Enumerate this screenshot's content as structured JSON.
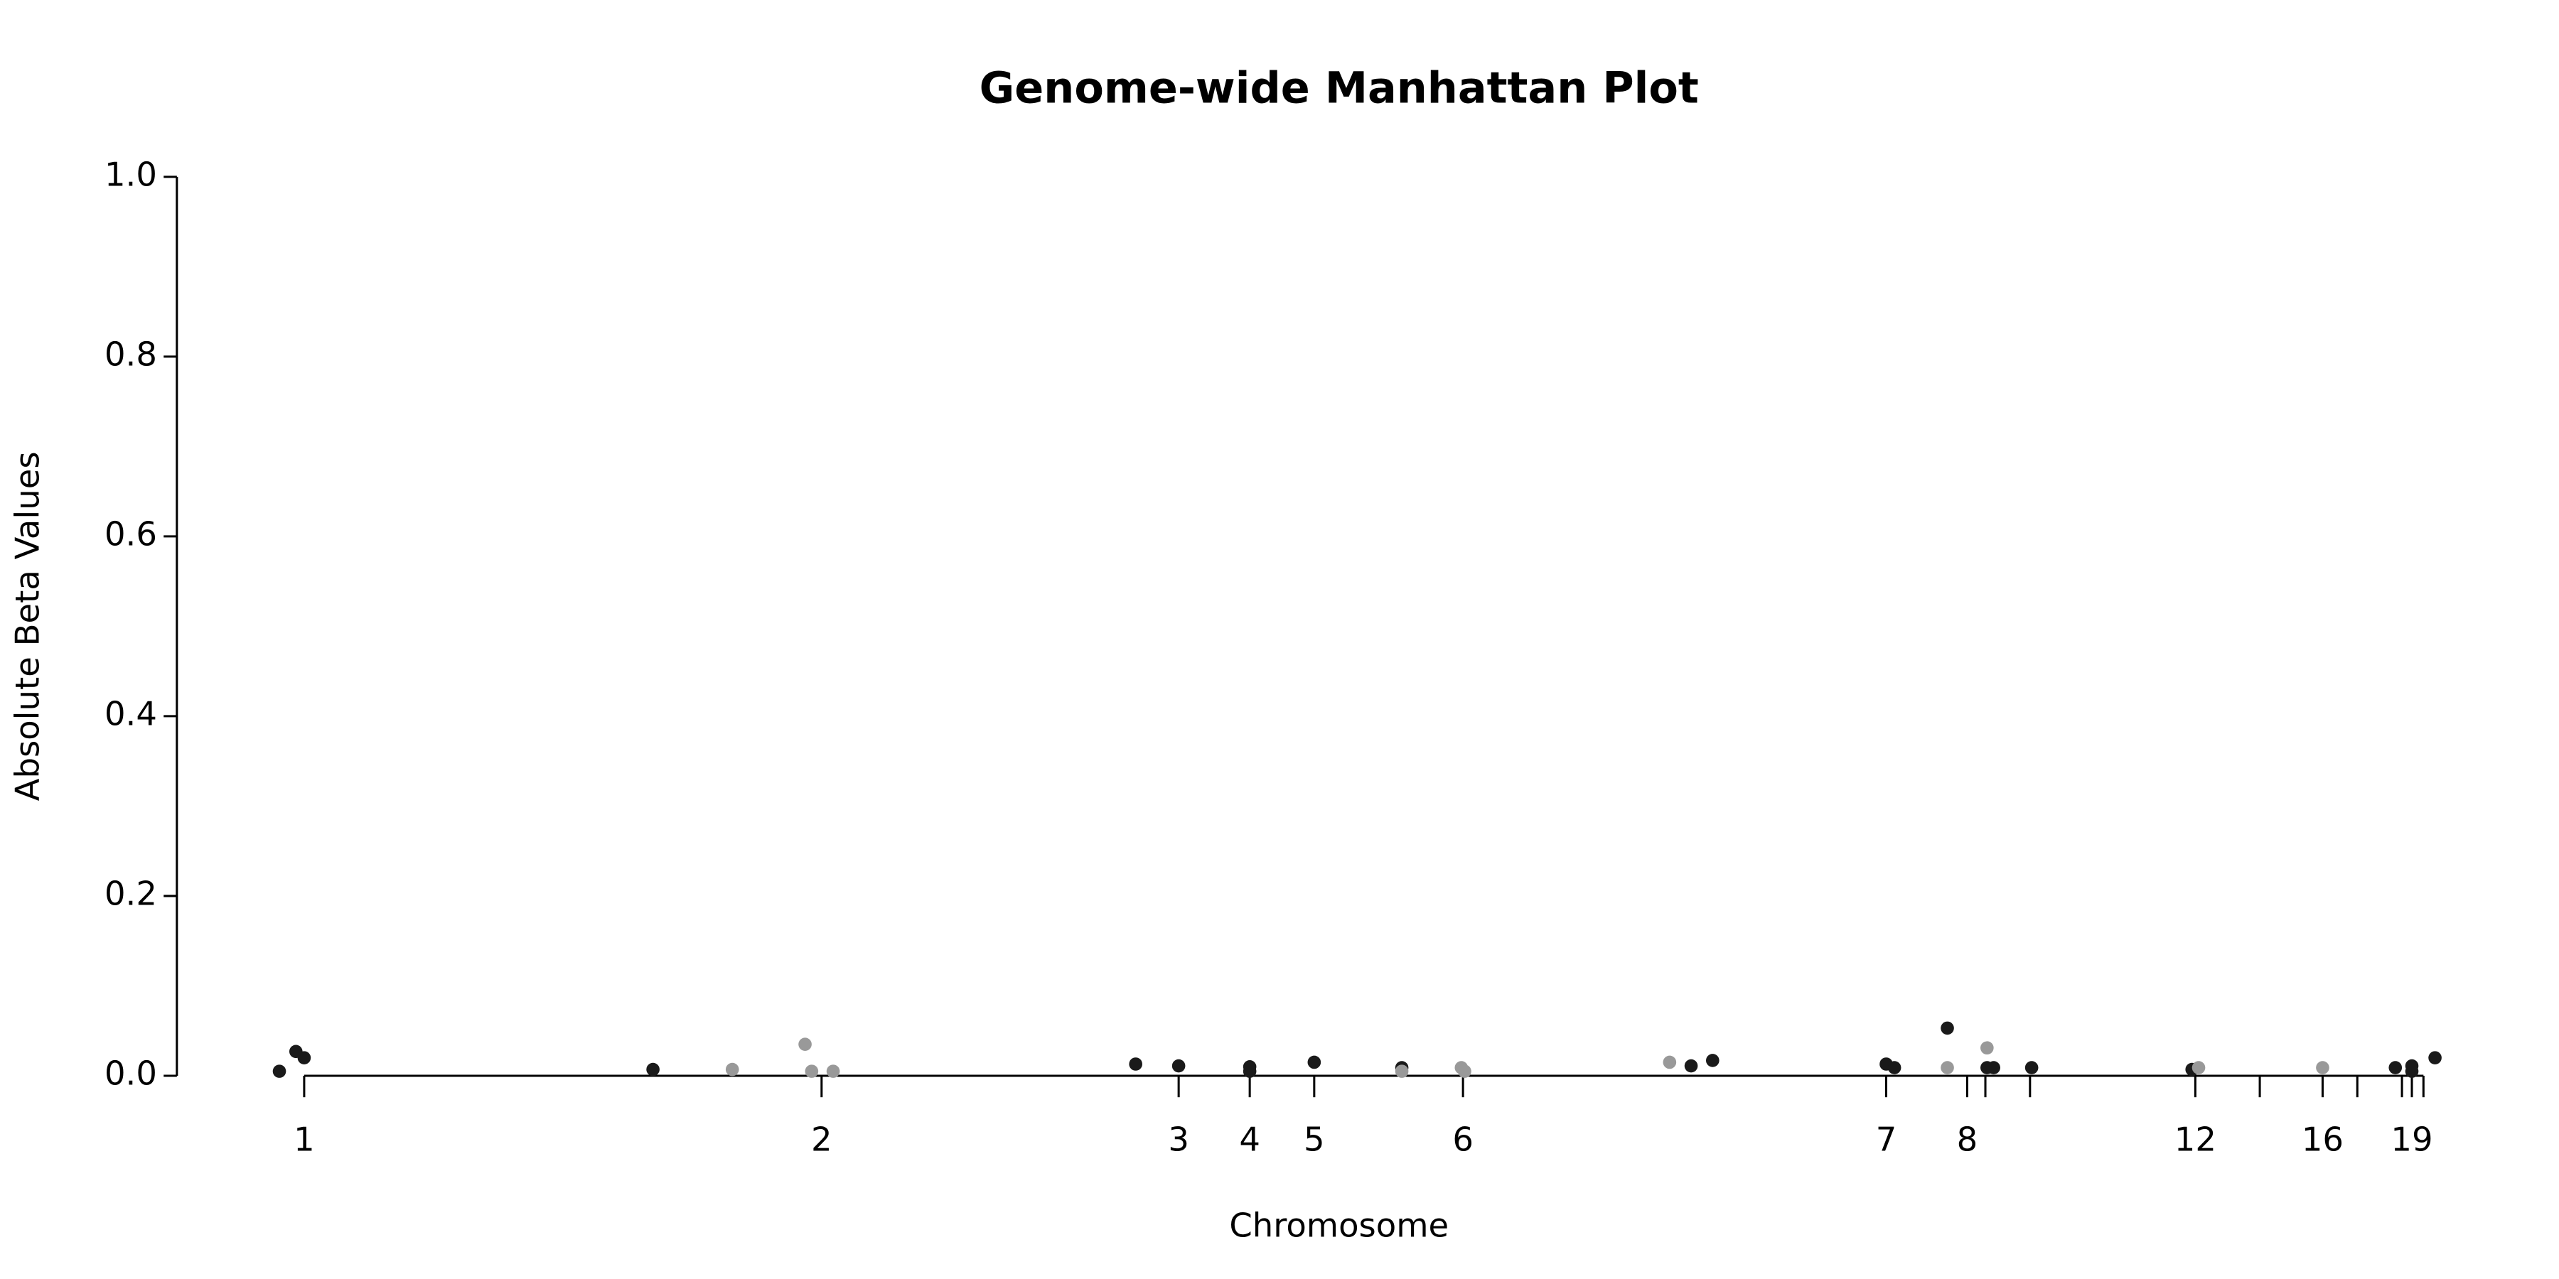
{
  "chart_data": {
    "type": "scatter",
    "title": "Genome-wide Manhattan Plot",
    "x_label": "Chromosome",
    "y_label": "Absolute Beta Values",
    "xlim": [
      0,
      1400
    ],
    "ylim": [
      0,
      1
    ],
    "yticks": [
      {
        "value": 0,
        "label": "0.0"
      },
      0.2,
      0.4,
      0.6,
      0.8,
      {
        "value": 1,
        "label": "1.0"
      }
    ],
    "xticks": [
      {
        "value": 77,
        "label": "1"
      },
      {
        "value": 390,
        "label": "2"
      },
      {
        "value": 606,
        "label": "3"
      },
      {
        "value": 649,
        "label": "4"
      },
      {
        "value": 688,
        "label": "5"
      },
      {
        "value": 778,
        "label": "6"
      },
      {
        "value": 1034,
        "label": "7"
      },
      {
        "value": 1083,
        "label": "8"
      },
      {
        "value": 1094,
        "label": null
      },
      {
        "value": 1121,
        "label": null
      },
      {
        "value": 1221,
        "label": "12"
      },
      {
        "value": 1260,
        "label": null
      },
      {
        "value": 1298,
        "label": "16"
      },
      {
        "value": 1319,
        "label": null
      },
      {
        "value": 1346,
        "label": null
      },
      {
        "value": 1352,
        "label": "19"
      },
      {
        "value": 1359,
        "label": null
      }
    ],
    "series": [
      {
        "color": "#1a1a1a",
        "x": [
          62,
          72,
          77,
          288,
          580,
          606,
          649,
          649,
          688,
          741,
          916,
          929,
          1034,
          1039,
          1071,
          1095,
          1099,
          1122,
          1219,
          1342,
          1352,
          1352,
          1366
        ],
        "values": [
          0.005,
          0.027,
          0.02,
          0.007,
          0.013,
          0.011,
          0.01,
          0.005,
          0.015,
          0.009,
          0.011,
          0.017,
          0.013,
          0.009,
          0.053,
          0.009,
          0.009,
          0.009,
          0.007,
          0.009,
          0.011,
          0.005,
          0.02
        ]
      },
      {
        "color": "#999999",
        "x": [
          336,
          380,
          384,
          397,
          741,
          777,
          779,
          903,
          1071,
          1095,
          1223,
          1298
        ],
        "values": [
          0.007,
          0.035,
          0.005,
          0.005,
          0.005,
          0.009,
          0.005,
          0.015,
          0.009,
          0.031,
          0.009,
          0.009
        ]
      }
    ]
  }
}
